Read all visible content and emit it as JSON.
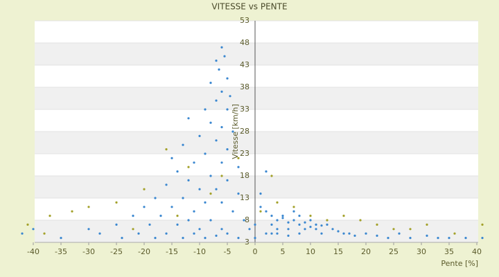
{
  "chart_data": {
    "type": "scatter",
    "title": "VITESSE vs PENTE",
    "x_label": "Pente [%]",
    "y_label": "Vitesse [km/h]",
    "xlim": [
      -40,
      40
    ],
    "xticks": [
      -40,
      -35,
      -30,
      -25,
      -20,
      -15,
      -10,
      -5,
      0,
      5,
      10,
      15,
      20,
      25,
      30,
      35,
      40
    ],
    "ylim": [
      3,
      53
    ],
    "yticks": [
      3,
      8,
      13,
      18,
      23,
      28,
      33,
      38,
      43,
      48,
      53
    ],
    "grid": true,
    "series": [
      {
        "color": "#3a87d0",
        "x": [
          -6,
          -5.5,
          -7,
          -6.5,
          -5,
          -8,
          -6,
          -4.5,
          -7,
          -9,
          -5,
          -12,
          -8,
          -6,
          -4,
          -10,
          -7,
          -13,
          -5,
          -9,
          -15,
          -11,
          -6,
          -3,
          -14,
          -8,
          -12,
          -5,
          -16,
          -10,
          -7,
          -3,
          -18,
          -13,
          -9,
          -6,
          -20,
          -15,
          -11,
          -4,
          -22,
          -17,
          -12,
          -8,
          -2,
          -25,
          -19,
          -14,
          -10,
          -6,
          -30,
          -21,
          -16,
          -11,
          -7,
          -3,
          -35,
          -24,
          -18,
          -13,
          -9,
          -5,
          -42,
          -40,
          -28,
          -1,
          0,
          0,
          1,
          2,
          3,
          4,
          5,
          6,
          7,
          8,
          9,
          10,
          11,
          12,
          3,
          4,
          5,
          6,
          7,
          8,
          9,
          10,
          11,
          13,
          14,
          15,
          16,
          17,
          18,
          20,
          22,
          24,
          26,
          28,
          31,
          33,
          35,
          38,
          2,
          3,
          1,
          2,
          4,
          6,
          8,
          12,
          41
        ],
        "values": [
          47,
          45,
          44,
          42,
          40,
          39,
          37,
          36,
          35,
          33,
          33,
          31,
          30,
          29,
          28,
          27,
          26,
          25,
          24,
          23,
          22,
          21,
          21,
          20,
          19,
          18,
          17,
          17,
          16,
          15,
          15,
          14,
          13,
          13,
          12,
          12,
          11,
          11,
          10,
          10,
          9,
          9,
          8,
          8,
          8,
          7,
          7,
          7,
          6,
          6,
          6,
          5,
          5,
          5,
          4.5,
          4,
          4,
          4,
          4,
          4,
          4,
          5,
          5,
          6,
          5,
          6,
          4,
          7,
          11,
          10,
          9,
          8,
          8.5,
          7.5,
          8,
          7,
          7.5,
          6.5,
          7,
          6.8,
          7,
          6,
          9,
          6,
          10,
          9,
          6,
          8,
          6,
          7,
          6,
          5.5,
          5,
          5,
          4.5,
          5,
          4.5,
          4,
          5,
          4,
          4.5,
          4,
          4,
          4,
          5,
          5,
          14,
          19,
          5,
          4.5,
          5,
          5,
          4
        ]
      },
      {
        "color": "#a3a12a",
        "x": [
          -16,
          -12,
          -20,
          -25,
          -33,
          -37,
          -30,
          -41,
          -38,
          -22,
          -8,
          -3,
          1,
          4,
          7,
          10,
          13,
          16,
          19,
          22,
          25,
          28,
          31,
          36,
          41,
          -14,
          -6,
          3
        ],
        "values": [
          24,
          20,
          15,
          12,
          10,
          9,
          11,
          7,
          5,
          6,
          14,
          22,
          10,
          12,
          11,
          9,
          8,
          9,
          8,
          7,
          6,
          6,
          7,
          5,
          7,
          9,
          18,
          18
        ]
      }
    ]
  }
}
